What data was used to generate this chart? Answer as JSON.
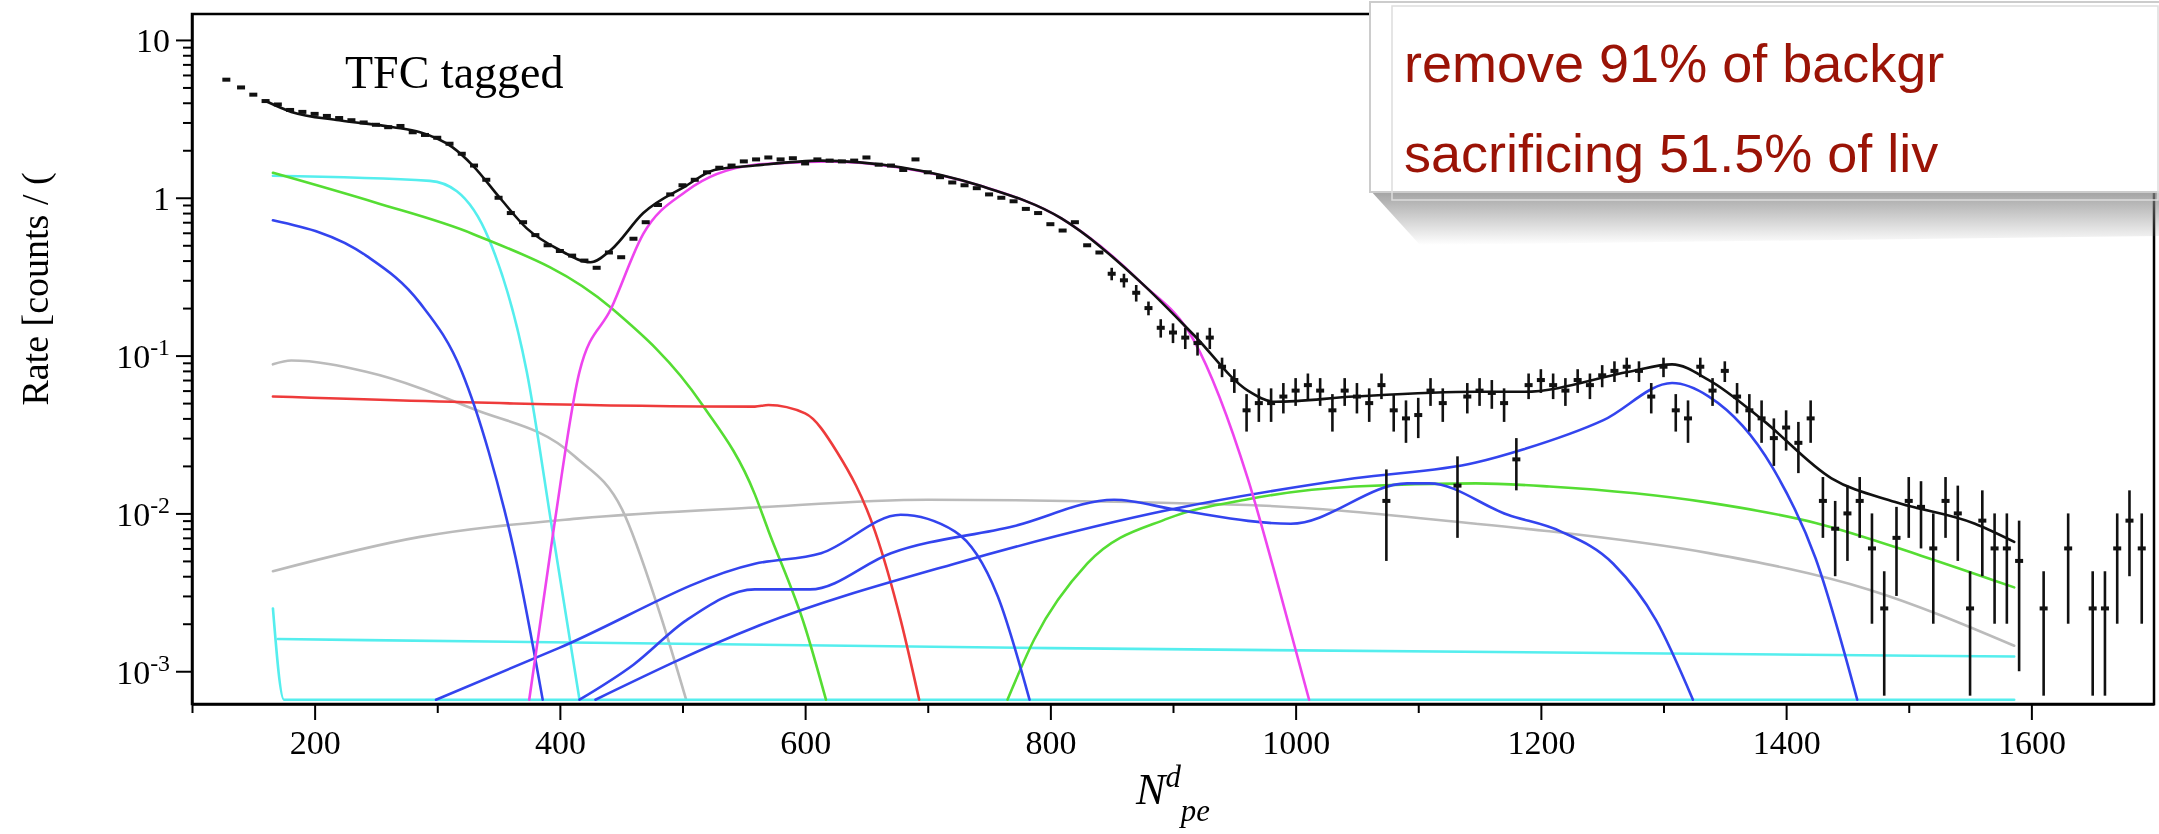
{
  "chart_data": {
    "type": "line",
    "xlabel": "N$^{d}$$_{pe}$",
    "ylabel": "Rate [counts / (",
    "log": "y",
    "annotations": [
      "TFC tagged",
      "remove 91% of backgr",
      "sacrificing 51.5% of liv"
    ],
    "xlim": [
      100,
      1700
    ],
    "ylim": [
      0.00062,
      14.6
    ],
    "xticks": [
      {
        "value": 100,
        "label": null
      },
      200,
      {
        "value": 300,
        "label": null
      },
      400,
      {
        "value": 500,
        "label": null
      },
      600,
      {
        "value": 700,
        "label": null
      },
      800,
      {
        "value": 900,
        "label": null
      },
      1000,
      {
        "value": 1100,
        "label": null
      },
      1200,
      {
        "value": 1300,
        "label": null
      },
      1400,
      {
        "value": 1500,
        "label": null
      },
      1600
    ],
    "yticks": [
      {
        "value": 0.001,
        "label": "10$^{-3}$"
      },
      {
        "value": 0.002,
        "label": null
      },
      {
        "value": 0.003,
        "label": null
      },
      {
        "value": 0.004,
        "label": null
      },
      {
        "value": 0.005,
        "label": null
      },
      {
        "value": 0.006,
        "label": null
      },
      {
        "value": 0.007,
        "label": null
      },
      {
        "value": 0.008,
        "label": null
      },
      {
        "value": 0.009,
        "label": null
      },
      {
        "value": 0.01,
        "label": "10$^{-2}$"
      },
      {
        "value": 0.02,
        "label": null
      },
      {
        "value": 0.03,
        "label": null
      },
      {
        "value": 0.04,
        "label": null
      },
      {
        "value": 0.05,
        "label": null
      },
      {
        "value": 0.06,
        "label": null
      },
      {
        "value": 0.07,
        "label": null
      },
      {
        "value": 0.08,
        "label": null
      },
      {
        "value": 0.09,
        "label": null
      },
      {
        "value": 0.1,
        "label": "10$^{-1}$"
      },
      {
        "value": 0.2,
        "label": null
      },
      {
        "value": 0.3,
        "label": null
      },
      {
        "value": 0.4,
        "label": null
      },
      {
        "value": 0.5,
        "label": null
      },
      {
        "value": 0.6,
        "label": null
      },
      {
        "value": 0.7,
        "label": null
      },
      {
        "value": 0.8,
        "label": null
      },
      {
        "value": 0.9,
        "label": null
      },
      1,
      {
        "value": 2,
        "label": null
      },
      {
        "value": 3,
        "label": null
      },
      {
        "value": 4,
        "label": null
      },
      {
        "value": 5,
        "label": null
      },
      {
        "value": 6,
        "label": null
      },
      {
        "value": 7,
        "label": null
      },
      {
        "value": 8,
        "label": null
      },
      {
        "value": 9,
        "label": null
      },
      10
    ],
    "series": [
      {
        "color": "#bbbbbb",
        "x": [
          166,
          181,
          242,
          329,
          412,
          451,
          481,
          503
        ],
        "values": [
          0.088,
          0.093,
          0.079,
          0.046,
          0.023,
          0.0105,
          0.0024,
          0.00066
        ]
      },
      {
        "color": "#bbbbbb",
        "x": [
          166,
          286,
          416,
          559,
          700,
          961,
          1147,
          1207,
          1337,
          1467,
          1586
        ],
        "values": [
          0.0043,
          0.0071,
          0.0093,
          0.0109,
          0.0122,
          0.0113,
          0.0086,
          0.0077,
          0.0056,
          0.0033,
          0.00145
        ]
      },
      {
        "color": "#55eeee",
        "x": [
          166,
          294,
          316,
          342,
          373,
          394,
          416
        ],
        "values": [
          1.38,
          1.28,
          1.1,
          0.55,
          0.079,
          0.0077,
          0.00066
        ]
      },
      {
        "color": "#55eeee",
        "x": [
          170,
          800,
          1586
        ],
        "values": [
          0.0016,
          0.0014,
          0.00124
        ]
      },
      {
        "color": "#55eeee",
        "x": [
          166,
          175,
          1586
        ],
        "values": [
          0.0025,
          0.00066,
          0.00066
        ]
      },
      {
        "color": "#55dd33",
        "x": [
          166,
          250,
          329,
          442,
          516,
          559,
          570,
          600,
          617
        ],
        "values": [
          1.44,
          0.93,
          0.59,
          0.2,
          0.049,
          0.0132,
          0.0078,
          0.0019,
          0.00066
        ]
      },
      {
        "color": "#55dd33",
        "x": [
          765,
          787,
          830,
          896,
          961,
          1048,
          1147,
          1207,
          1337,
          1424,
          1510,
          1586
        ],
        "values": [
          0.00066,
          0.0016,
          0.0048,
          0.0093,
          0.0123,
          0.0148,
          0.0155,
          0.0148,
          0.0117,
          0.0087,
          0.0054,
          0.0034
        ]
      },
      {
        "color": "#ee3b3b",
        "x": [
          166,
          559,
          570,
          600,
          626,
          657,
          678,
          693
        ],
        "values": [
          0.055,
          0.0475,
          0.0486,
          0.043,
          0.0245,
          0.0077,
          0.0021,
          0.00066
        ]
      },
      {
        "color": "#3344ee",
        "x": [
          166,
          242,
          286,
          320,
          342,
          364,
          386
        ],
        "values": [
          0.72,
          0.43,
          0.215,
          0.079,
          0.0245,
          0.0052,
          0.00066
        ]
      },
      {
        "color": "#3344ee",
        "x": [
          299,
          399,
          559,
          613,
          678,
          722,
          757,
          783
        ],
        "values": [
          0.00066,
          0.0014,
          0.0048,
          0.0056,
          0.0098,
          0.0077,
          0.003,
          0.00066
        ]
      },
      {
        "color": "#3344ee",
        "x": [
          416,
          460,
          503,
          559,
          604,
          670,
          770,
          852,
          904,
          996,
          1091,
          1109,
          1173,
          1216,
          1259,
          1294,
          1324
        ],
        "values": [
          0.00066,
          0.0011,
          0.0021,
          0.0033,
          0.0033,
          0.0056,
          0.0083,
          0.0122,
          0.0105,
          0.0086,
          0.0155,
          0.0155,
          0.0098,
          0.0077,
          0.0048,
          0.0021,
          0.00066
        ]
      },
      {
        "color": "#3344ee",
        "x": [
          429,
          559,
          722,
          896,
          1048,
          1147,
          1186,
          1251,
          1307,
          1337,
          1389,
          1424,
          1458
        ],
        "values": [
          0.00066,
          0.0019,
          0.0048,
          0.0105,
          0.0167,
          0.021,
          0.0255,
          0.039,
          0.067,
          0.055,
          0.0195,
          0.0052,
          0.00066
        ]
      },
      {
        "color": "#ee44ee",
        "x": [
          375,
          395,
          416,
          442,
          468,
          503,
          559,
          570,
          620,
          678,
          743,
          809,
          874,
          917,
          961,
          983,
          1011
        ],
        "values": [
          0.00066,
          0.008,
          0.079,
          0.2,
          0.59,
          1.1,
          1.62,
          1.64,
          1.7,
          1.55,
          1.19,
          0.74,
          0.29,
          0.125,
          0.0166,
          0.0042,
          0.00066
        ]
      },
      {
        "color": "#111111",
        "x": [
          160,
          181,
          220,
          264,
          286,
          312,
          329,
          351,
          373,
          399,
          425,
          442,
          468,
          503,
          526,
          559,
          613,
          678,
          743,
          809,
          874,
          917,
          961,
          983,
          1048,
          1147,
          1186,
          1272,
          1307,
          1337,
          1381,
          1437,
          1489,
          1554,
          1586
        ],
        "values": [
          4.1,
          3.5,
          3.1,
          2.8,
          2.6,
          2.1,
          1.6,
          1.0,
          0.64,
          0.47,
          0.39,
          0.47,
          0.8,
          1.19,
          1.5,
          1.6,
          1.72,
          1.56,
          1.19,
          0.74,
          0.29,
          0.135,
          0.06,
          0.051,
          0.055,
          0.059,
          0.059,
          0.079,
          0.088,
          0.07,
          0.039,
          0.0167,
          0.0118,
          0.0086,
          0.0066
        ]
      },
      {
        "type": "scatter",
        "marker": "square",
        "color": "#111111",
        "x": [
          128,
          140,
          150,
          160,
          170,
          180,
          190,
          200,
          210,
          220,
          230,
          240,
          250,
          260,
          270,
          280,
          290,
          300,
          310,
          320,
          330,
          340,
          350,
          360,
          370,
          380,
          390,
          400,
          410,
          420,
          430,
          440,
          450,
          460,
          470,
          480,
          490,
          500,
          510,
          520,
          530,
          540,
          550,
          560,
          570,
          580,
          590,
          600,
          610,
          620,
          630,
          640,
          650,
          660,
          670,
          680,
          690,
          700,
          710,
          720,
          730,
          740,
          750,
          760,
          770,
          780,
          790,
          800,
          810,
          820,
          830,
          840,
          850,
          860,
          870,
          880,
          890,
          900,
          910,
          920,
          930,
          940,
          950,
          960,
          970,
          980,
          990,
          1000,
          1010,
          1020,
          1030,
          1040,
          1050,
          1060,
          1070,
          1074,
          1080,
          1090,
          1100,
          1110,
          1120,
          1132,
          1140,
          1150,
          1160,
          1170,
          1180,
          1190,
          1200,
          1210,
          1220,
          1230,
          1240,
          1250,
          1260,
          1270,
          1280,
          1290,
          1300,
          1310,
          1320,
          1330,
          1340,
          1350,
          1360,
          1370,
          1380,
          1390,
          1400,
          1410,
          1420,
          1430,
          1440,
          1450,
          1460,
          1470,
          1480,
          1490,
          1500,
          1510,
          1520,
          1530,
          1540,
          1550,
          1560,
          1570,
          1580,
          1590,
          1610,
          1630,
          1650,
          1660,
          1670,
          1680,
          1690
        ],
        "values": [
          5.6,
          5.0,
          4.5,
          4.1,
          3.9,
          3.6,
          3.5,
          3.4,
          3.3,
          3.2,
          3.1,
          3.0,
          2.9,
          2.8,
          2.85,
          2.6,
          2.5,
          2.4,
          2.2,
          1.9,
          1.6,
          1.3,
          1.0,
          0.8,
          0.7,
          0.58,
          0.5,
          0.46,
          0.43,
          0.4,
          0.36,
          0.45,
          0.42,
          0.55,
          0.7,
          0.9,
          1.05,
          1.2,
          1.3,
          1.45,
          1.55,
          1.6,
          1.7,
          1.75,
          1.8,
          1.75,
          1.78,
          1.65,
          1.75,
          1.72,
          1.7,
          1.72,
          1.8,
          1.62,
          1.6,
          1.5,
          1.75,
          1.45,
          1.35,
          1.25,
          1.2,
          1.15,
          1.05,
          1.0,
          0.95,
          0.85,
          0.8,
          0.68,
          0.62,
          0.7,
          0.5,
          0.45,
          0.33,
          0.3,
          0.25,
          0.2,
          0.15,
          0.14,
          0.13,
          0.12,
          0.13,
          0.085,
          0.07,
          0.045,
          0.05,
          0.05,
          0.055,
          0.06,
          0.065,
          0.06,
          0.045,
          0.06,
          0.055,
          0.05,
          0.065,
          0.012,
          0.045,
          0.04,
          0.042,
          0.06,
          0.05,
          0.015,
          0.055,
          0.06,
          0.058,
          0.05,
          0.022,
          0.065,
          0.07,
          0.065,
          0.06,
          0.07,
          0.065,
          0.075,
          0.08,
          0.085,
          0.08,
          0.055,
          0.085,
          0.045,
          0.04,
          0.085,
          0.06,
          0.08,
          0.055,
          0.045,
          0.04,
          0.03,
          0.035,
          0.028,
          0.04,
          0.012,
          0.008,
          0.01,
          0.012,
          0.006,
          0.0025,
          0.007,
          0.012,
          0.011,
          0.006,
          0.012,
          0.01,
          0.0025,
          0.009,
          0.006,
          0.006,
          0.005,
          0.0025,
          0.006,
          0.0025,
          0.0025,
          0.006,
          0.009,
          0.006
        ],
        "errors": [
          null,
          null,
          null,
          null,
          null,
          null,
          null,
          null,
          null,
          null,
          null,
          null,
          null,
          null,
          null,
          null,
          null,
          null,
          null,
          null,
          null,
          null,
          null,
          null,
          null,
          null,
          null,
          null,
          null,
          null,
          null,
          null,
          null,
          null,
          null,
          null,
          null,
          null,
          null,
          null,
          null,
          null,
          null,
          null,
          null,
          null,
          null,
          null,
          null,
          null,
          null,
          null,
          null,
          null,
          null,
          null,
          null,
          null,
          null,
          null,
          null,
          null,
          null,
          null,
          null,
          null,
          null,
          null,
          null,
          null,
          null,
          null,
          0.03,
          0.03,
          0.03,
          0.02,
          0.02,
          0.02,
          0.02,
          0.02,
          0.02,
          0.012,
          0.012,
          0.012,
          0.012,
          0.012,
          0.012,
          0.012,
          0.012,
          0.012,
          0.012,
          0.012,
          0.012,
          0.012,
          0.012,
          0.007,
          0.012,
          0.012,
          0.012,
          0.012,
          0.012,
          0.008,
          0.012,
          0.012,
          0.012,
          0.012,
          0.008,
          0.012,
          0.012,
          0.012,
          0.012,
          0.012,
          0.012,
          0.012,
          0.012,
          0.012,
          0.012,
          0.012,
          0.012,
          0.012,
          0.012,
          0.012,
          0.012,
          0.012,
          0.012,
          0.012,
          0.012,
          0.01,
          0.01,
          0.01,
          0.012,
          0.005,
          0.004,
          0.005,
          0.005,
          0.004,
          0.0018,
          0.004,
          0.005,
          0.005,
          0.004,
          0.005,
          0.005,
          0.0018,
          0.005,
          0.004,
          0.004,
          0.004,
          0.0018,
          0.004,
          0.0018,
          0.0018,
          0.004,
          0.005,
          0.004
        ]
      }
    ]
  }
}
